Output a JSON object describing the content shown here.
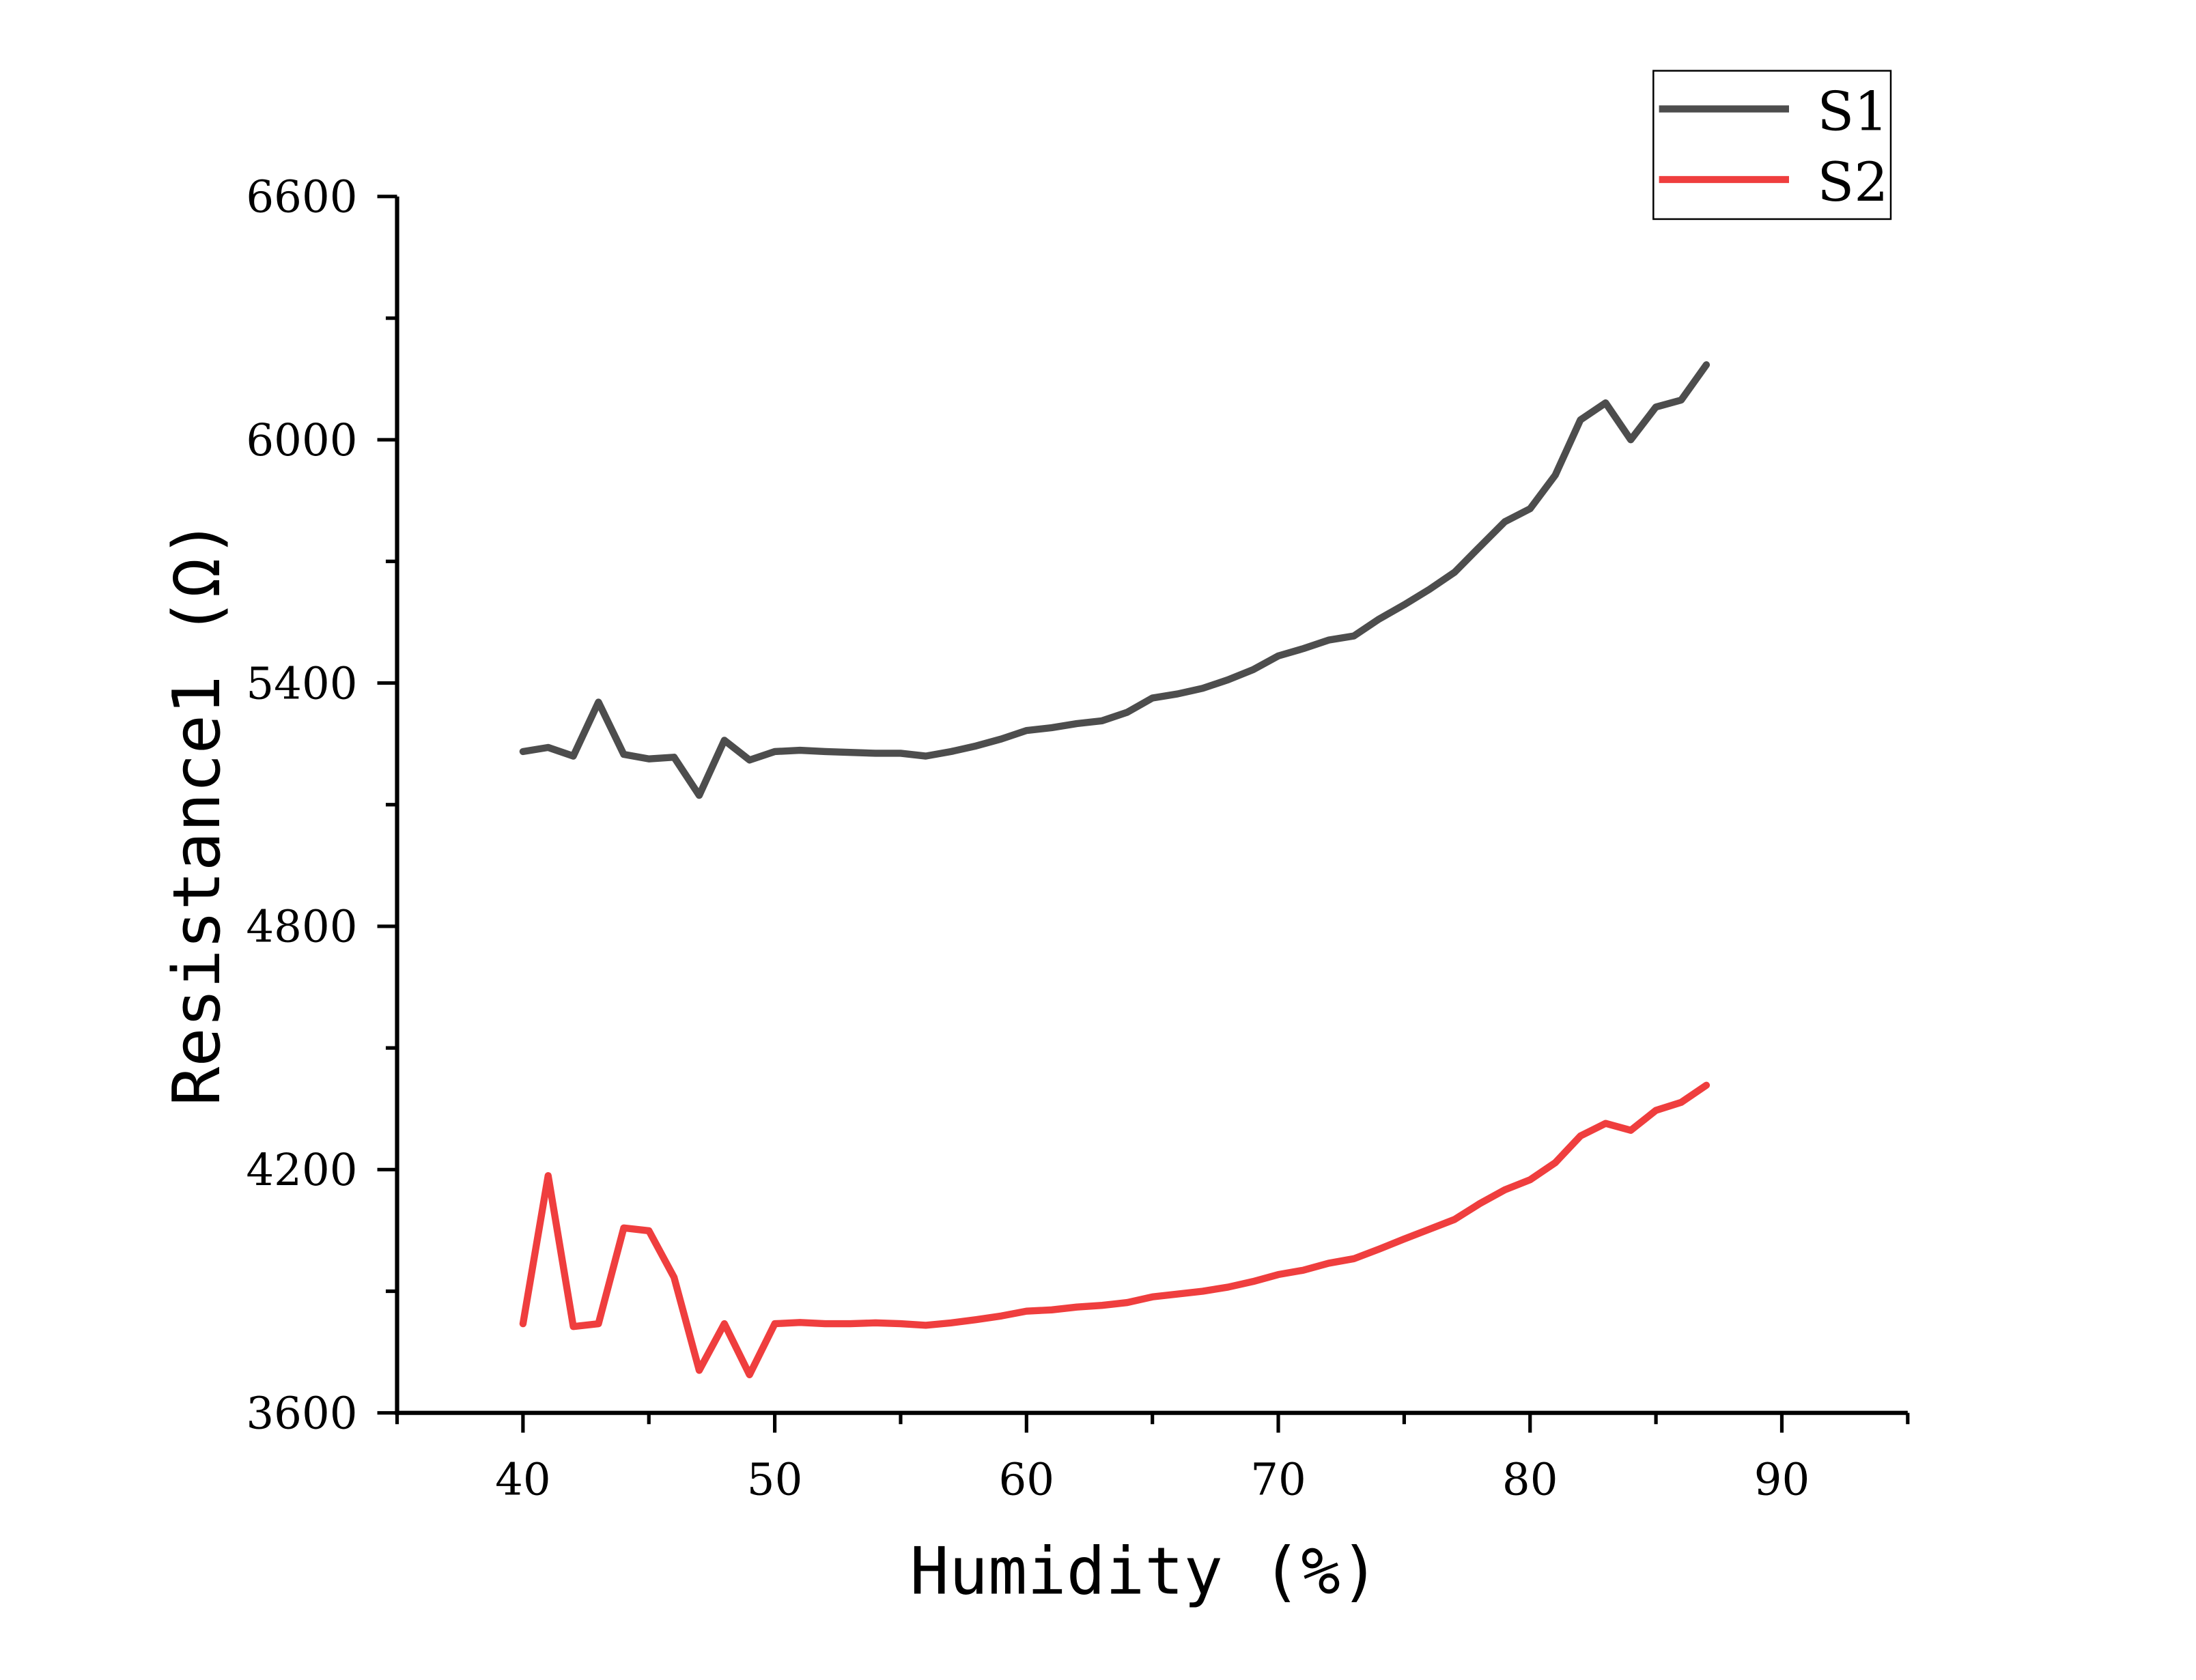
{
  "chart_data": {
    "type": "line",
    "xlabel": "Humidity (%)",
    "ylabel": "Resistance1 (Ω)",
    "xlim": [
      35,
      95
    ],
    "ylim": [
      3600,
      6600
    ],
    "xticks": [
      40,
      50,
      60,
      70,
      80,
      90
    ],
    "yticks": [
      3600,
      4200,
      4800,
      5400,
      6000,
      6600
    ],
    "xtick_labels": [
      "40",
      "50",
      "60",
      "70",
      "80",
      "90"
    ],
    "ytick_labels": [
      "3600",
      "4200",
      "4800",
      "5400",
      "6000",
      "6600"
    ],
    "grid": false,
    "legend": {
      "position": "top-right",
      "entries": [
        "S1",
        "S2"
      ]
    },
    "x": [
      40,
      41,
      42,
      43,
      44,
      45,
      46,
      47,
      48,
      49,
      50,
      51,
      52,
      53,
      54,
      55,
      56,
      57,
      58,
      59,
      60,
      61,
      62,
      63,
      64,
      65,
      66,
      67,
      68,
      69,
      70,
      71,
      72,
      73,
      74,
      75,
      76,
      77,
      78,
      79,
      80,
      81,
      82,
      83,
      84,
      85,
      86,
      87
    ],
    "series": [
      {
        "name": "S1",
        "color": "#4d4d4d",
        "values": [
          5231,
          5241,
          5220,
          5353,
          5224,
          5213,
          5217,
          5123,
          5259,
          5210,
          5231,
          5234,
          5231,
          5229,
          5227,
          5227,
          5220,
          5231,
          5245,
          5262,
          5283,
          5290,
          5300,
          5307,
          5328,
          5363,
          5373,
          5387,
          5408,
          5433,
          5467,
          5485,
          5506,
          5516,
          5558,
          5593,
          5631,
          5673,
          5736,
          5798,
          5830,
          5913,
          6049,
          6091,
          6000,
          6081,
          6098,
          6185
        ]
      },
      {
        "name": "S2",
        "color": "#ef3e3e",
        "values": [
          3820,
          4185,
          3813,
          3820,
          4056,
          4049,
          3934,
          3705,
          3820,
          3694,
          3820,
          3823,
          3820,
          3820,
          3822,
          3820,
          3816,
          3822,
          3830,
          3839,
          3851,
          3854,
          3861,
          3865,
          3872,
          3886,
          3893,
          3900,
          3910,
          3924,
          3941,
          3952,
          3969,
          3980,
          4004,
          4029,
          4053,
          4077,
          4116,
          4150,
          4175,
          4217,
          4283,
          4314,
          4297,
          4346,
          4366,
          4408
        ]
      }
    ]
  }
}
